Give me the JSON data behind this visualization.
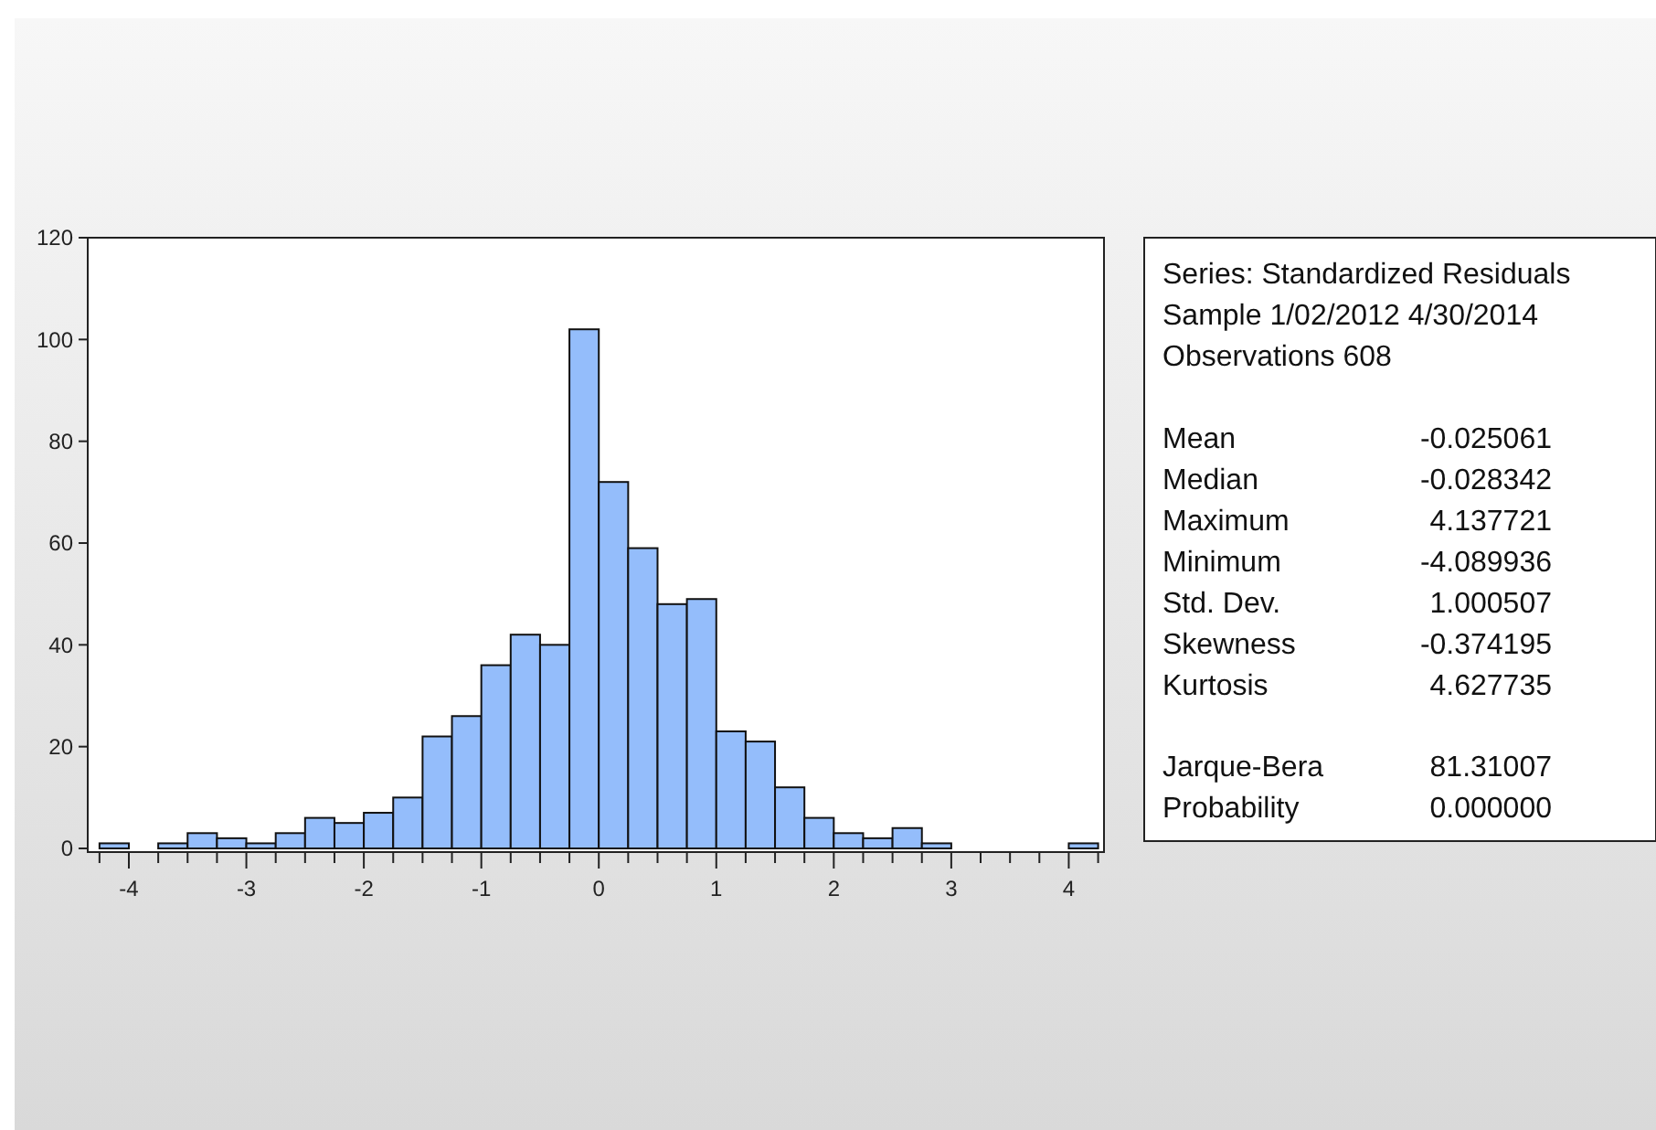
{
  "chart_data": {
    "type": "histogram",
    "bins": [
      -4.25,
      -4,
      -3.75,
      -3.5,
      -3.25,
      -3,
      -2.75,
      -2.5,
      -2.25,
      -2,
      -1.75,
      -1.5,
      -1.25,
      -1,
      -0.75,
      -0.5,
      -0.25,
      0,
      0.25,
      0.5,
      0.75,
      1,
      1.25,
      1.5,
      1.75,
      2,
      2.25,
      2.5,
      2.75,
      3,
      3.25,
      3.5,
      3.75,
      4,
      4.25
    ],
    "values": [
      1,
      0,
      1,
      3,
      2,
      1,
      3,
      6,
      5,
      7,
      10,
      22,
      26,
      36,
      42,
      40,
      102,
      72,
      59,
      48,
      49,
      23,
      21,
      12,
      6,
      3,
      2,
      4,
      1,
      0,
      0,
      0,
      0,
      1
    ],
    "color": "#94bdfb",
    "xlim": [
      -4.35,
      4.3
    ],
    "xticks": [
      {
        "value": -4.25,
        "label": null
      },
      -4,
      {
        "value": -3.75,
        "label": null
      },
      {
        "value": -3.5,
        "label": null
      },
      {
        "value": -3.25,
        "label": null
      },
      -3,
      {
        "value": -2.75,
        "label": null
      },
      {
        "value": -2.5,
        "label": null
      },
      {
        "value": -2.25,
        "label": null
      },
      -2,
      {
        "value": -1.75,
        "label": null
      },
      {
        "value": -1.5,
        "label": null
      },
      {
        "value": -1.25,
        "label": null
      },
      -1,
      {
        "value": -0.75,
        "label": null
      },
      {
        "value": -0.5,
        "label": null
      },
      {
        "value": -0.25,
        "label": null
      },
      0,
      {
        "value": 0.25,
        "label": null
      },
      {
        "value": 0.5,
        "label": null
      },
      {
        "value": 0.75,
        "label": null
      },
      1,
      {
        "value": 1.25,
        "label": null
      },
      {
        "value": 1.5,
        "label": null
      },
      {
        "value": 1.75,
        "label": null
      },
      2,
      {
        "value": 2.25,
        "label": null
      },
      {
        "value": 2.5,
        "label": null
      },
      {
        "value": 2.75,
        "label": null
      },
      3,
      {
        "value": 3.25,
        "label": null
      },
      {
        "value": 3.5,
        "label": null
      },
      {
        "value": 3.75,
        "label": null
      },
      4,
      {
        "value": 4.25,
        "label": null
      }
    ],
    "ylim": [
      0,
      120
    ],
    "yticks": [
      0,
      20,
      40,
      60,
      80,
      100,
      120
    ],
    "annotations": [
      "Series: Standardized Residuals",
      "Sample 1/02/2012 4/30/2014",
      "Observations 608",
      "Mean",
      "-0.025061",
      "Median",
      "-0.028342",
      "Maximum",
      "4.137721",
      "Minimum",
      "-4.089936",
      "Std. Dev.",
      "1.000507",
      "Skewness",
      "-0.374195",
      "Kurtosis",
      "4.627735",
      "Jarque-Bera",
      "81.31007",
      "Probability",
      "0.000000"
    ]
  }
}
